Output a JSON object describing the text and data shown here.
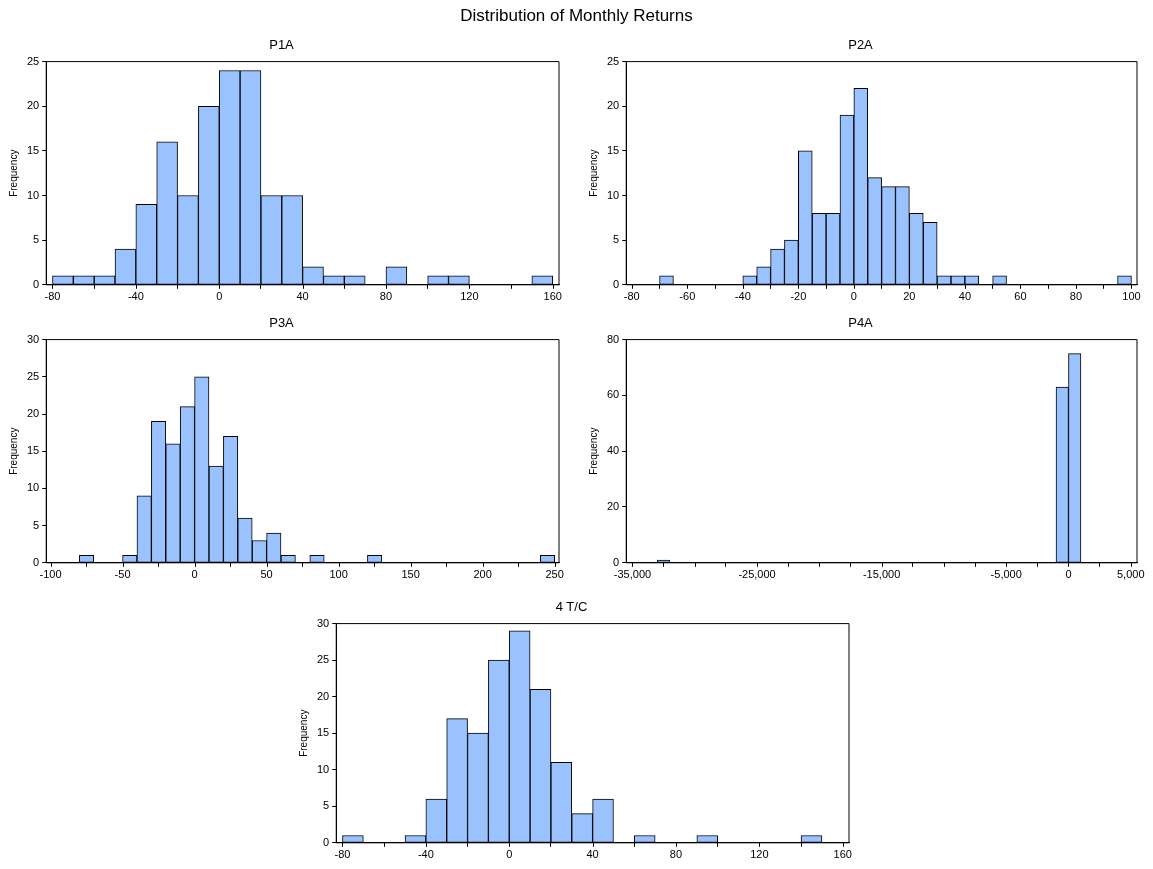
{
  "chart_data": [
    {
      "type": "histogram",
      "title": "P1A",
      "ylabel": "Frequency",
      "annotations": [
        "Distribution of Monthly Returns"
      ],
      "color": "#99c2ff",
      "bins": [
        -80,
        -70,
        -60,
        -50,
        -40,
        -30,
        -20,
        -10,
        0,
        10,
        20,
        30,
        40,
        50,
        60,
        70,
        80,
        90,
        100,
        110,
        120,
        130,
        140,
        150,
        160
      ],
      "values": [
        1,
        1,
        1,
        4,
        9,
        16,
        10,
        20,
        24,
        24,
        10,
        10,
        2,
        1,
        1,
        0,
        2,
        0,
        1,
        1,
        0,
        0,
        0,
        1
      ],
      "xlim": [
        -83,
        163
      ],
      "xticks": [
        -80,
        -40,
        0,
        40,
        80,
        120,
        160
      ],
      "ylim": [
        0,
        25
      ],
      "yticks": [
        0,
        5,
        10,
        15,
        20,
        25
      ]
    },
    {
      "type": "histogram",
      "title": "P2A",
      "ylabel": "Frequency",
      "color": "#99c2ff",
      "bins": [
        -70,
        -65,
        -60,
        -55,
        -50,
        -45,
        -40,
        -35,
        -30,
        -25,
        -20,
        -15,
        -10,
        -5,
        0,
        5,
        10,
        15,
        20,
        25,
        30,
        35,
        40,
        45,
        50,
        55,
        60,
        65,
        70,
        75,
        80,
        85,
        90,
        95,
        100
      ],
      "values": [
        1,
        0,
        0,
        0,
        0,
        0,
        1,
        2,
        4,
        5,
        15,
        8,
        8,
        19,
        22,
        12,
        11,
        11,
        8,
        7,
        1,
        1,
        1,
        0,
        1,
        0,
        0,
        0,
        0,
        0,
        0,
        0,
        0,
        1
      ],
      "xlim": [
        -82,
        102
      ],
      "xticks": [
        -80,
        -60,
        -40,
        -20,
        0,
        20,
        40,
        60,
        80,
        100
      ],
      "ylim": [
        0,
        25
      ],
      "yticks": [
        0,
        5,
        10,
        15,
        20,
        25
      ]
    },
    {
      "type": "histogram",
      "title": "P3A",
      "ylabel": "Frequency",
      "color": "#99c2ff",
      "bins": [
        -80,
        -70,
        -60,
        -50,
        -40,
        -30,
        -20,
        -10,
        0,
        10,
        20,
        30,
        40,
        50,
        60,
        70,
        80,
        90,
        100,
        110,
        120,
        130,
        140,
        150,
        160,
        170,
        180,
        190,
        200,
        210,
        220,
        230,
        240,
        250
      ],
      "values": [
        1,
        0,
        0,
        1,
        9,
        19,
        16,
        21,
        25,
        13,
        17,
        6,
        3,
        4,
        1,
        0,
        1,
        0,
        0,
        0,
        1,
        0,
        0,
        0,
        0,
        0,
        0,
        0,
        0,
        0,
        0,
        0,
        1
      ],
      "xlim": [
        -103,
        253
      ],
      "xticks": [
        -100,
        -50,
        0,
        50,
        100,
        150,
        200,
        250
      ],
      "ylim": [
        0,
        30
      ],
      "yticks": [
        0,
        5,
        10,
        15,
        20,
        25,
        30
      ]
    },
    {
      "type": "histogram",
      "title": "P4A",
      "ylabel": "Frequency",
      "color": "#99c2ff",
      "bins": [
        -33000,
        -32000,
        -31000,
        -30000,
        -29000,
        -28000,
        -27000,
        -26000,
        -25000,
        -24000,
        -23000,
        -22000,
        -21000,
        -20000,
        -19000,
        -18000,
        -17000,
        -16000,
        -15000,
        -14000,
        -13000,
        -12000,
        -11000,
        -10000,
        -9000,
        -8000,
        -7000,
        -6000,
        -5000,
        -4000,
        -3000,
        -2000,
        -1000,
        0,
        1000
      ],
      "values": [
        1,
        0,
        0,
        0,
        0,
        0,
        0,
        0,
        0,
        0,
        0,
        0,
        0,
        0,
        0,
        0,
        0,
        0,
        0,
        0,
        0,
        0,
        0,
        0,
        0,
        0,
        0,
        0,
        0,
        0,
        0,
        0,
        63,
        75
      ],
      "xlim": [
        -35500,
        5500
      ],
      "xticks": [
        {
          "value": -35000,
          "label": "-35,000"
        },
        {
          "value": -30000,
          "label": null
        },
        {
          "value": -25000,
          "label": "-25,000"
        },
        {
          "value": -20000,
          "label": null
        },
        {
          "value": -15000,
          "label": "-15,000"
        },
        {
          "value": -10000,
          "label": null
        },
        {
          "value": -5000,
          "label": "-5,000"
        },
        0,
        {
          "value": 5000,
          "label": "5,000"
        }
      ],
      "ylim": [
        0,
        80
      ],
      "yticks": [
        0,
        20,
        40,
        60,
        80
      ]
    },
    {
      "type": "histogram",
      "title": "4 T/C",
      "ylabel": "Frequency",
      "color": "#99c2ff",
      "bins": [
        -80,
        -70,
        -60,
        -50,
        -40,
        -30,
        -20,
        -10,
        0,
        10,
        20,
        30,
        40,
        50,
        60,
        70,
        80,
        90,
        100,
        110,
        120,
        130,
        140,
        150
      ],
      "values": [
        1,
        0,
        0,
        1,
        6,
        17,
        15,
        25,
        29,
        21,
        11,
        4,
        6,
        0,
        1,
        0,
        0,
        1,
        0,
        0,
        0,
        0,
        1
      ],
      "xlim": [
        -83,
        163
      ],
      "xticks": [
        -80,
        -40,
        0,
        40,
        80,
        120,
        160
      ],
      "ylim": [
        0,
        30
      ],
      "yticks": [
        0,
        5,
        10,
        15,
        20,
        25,
        30
      ]
    }
  ]
}
